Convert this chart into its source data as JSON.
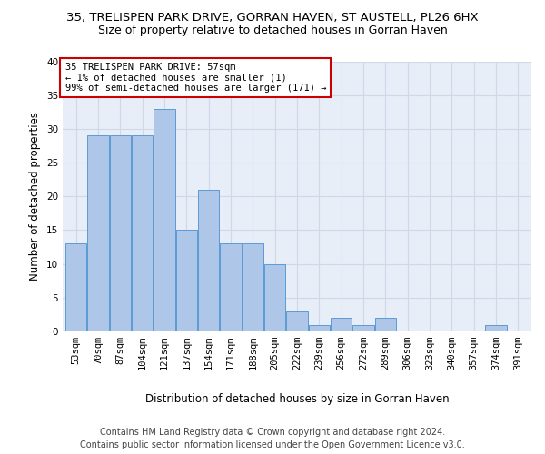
{
  "title": "35, TRELISPEN PARK DRIVE, GORRAN HAVEN, ST AUSTELL, PL26 6HX",
  "subtitle": "Size of property relative to detached houses in Gorran Haven",
  "xlabel": "Distribution of detached houses by size in Gorran Haven",
  "ylabel": "Number of detached properties",
  "footer_line1": "Contains HM Land Registry data © Crown copyright and database right 2024.",
  "footer_line2": "Contains public sector information licensed under the Open Government Licence v3.0.",
  "annotation_title": "35 TRELISPEN PARK DRIVE: 57sqm",
  "annotation_line2": "← 1% of detached houses are smaller (1)",
  "annotation_line3": "99% of semi-detached houses are larger (171) →",
  "bar_labels": [
    "53sqm",
    "70sqm",
    "87sqm",
    "104sqm",
    "121sqm",
    "137sqm",
    "154sqm",
    "171sqm",
    "188sqm",
    "205sqm",
    "222sqm",
    "239sqm",
    "256sqm",
    "272sqm",
    "289sqm",
    "306sqm",
    "323sqm",
    "340sqm",
    "357sqm",
    "374sqm",
    "391sqm"
  ],
  "bar_values": [
    13,
    29,
    29,
    29,
    33,
    15,
    21,
    13,
    13,
    10,
    3,
    1,
    2,
    1,
    2,
    0,
    0,
    0,
    0,
    1,
    0
  ],
  "bar_color": "#aec6e8",
  "bar_edge_color": "#5b9bd5",
  "annotation_box_color": "#ffffff",
  "annotation_box_edge_color": "#cc0000",
  "ylim": [
    0,
    40
  ],
  "yticks": [
    0,
    5,
    10,
    15,
    20,
    25,
    30,
    35,
    40
  ],
  "grid_color": "#d0d8e8",
  "bg_color": "#e8eef8",
  "title_fontsize": 9.5,
  "subtitle_fontsize": 9,
  "axis_label_fontsize": 8.5,
  "tick_fontsize": 7.5,
  "footer_fontsize": 7,
  "annotation_fontsize": 7.5
}
